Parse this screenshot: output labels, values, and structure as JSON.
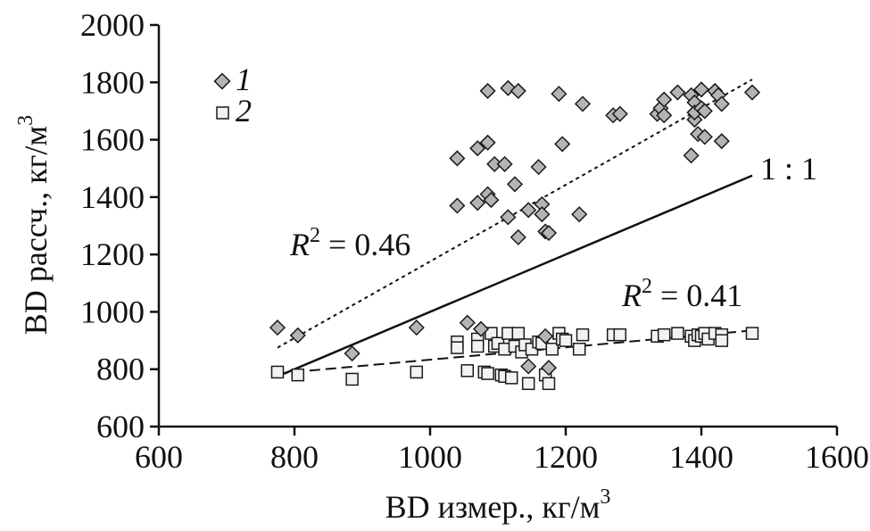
{
  "chart_data": {
    "type": "scatter",
    "title": "",
    "xlabel": {
      "text": "BD измер., кг/м",
      "sup": "3"
    },
    "ylabel": {
      "text": "BD рассч., кг/м",
      "sup": "3"
    },
    "xlim": [
      600,
      1600
    ],
    "ylim": [
      600,
      2000
    ],
    "xticks": [
      600,
      800,
      1000,
      1200,
      1400,
      1600
    ],
    "yticks": [
      600,
      800,
      1000,
      1200,
      1400,
      1600,
      1800,
      2000
    ],
    "grid": false,
    "legend_position": "top-left",
    "colors": {
      "series1_fill": "#b4b4b4",
      "series2_fill": "#f2f2f2",
      "stroke": "#1a1a1a"
    },
    "series": [
      {
        "name": "1",
        "marker": "diamond",
        "points": [
          [
            775,
            945
          ],
          [
            805,
            918
          ],
          [
            885,
            855
          ],
          [
            980,
            945
          ],
          [
            1055,
            962
          ],
          [
            1075,
            940
          ],
          [
            1145,
            810
          ],
          [
            1175,
            805
          ],
          [
            1170,
            915
          ],
          [
            1040,
            1535
          ],
          [
            1040,
            1370
          ],
          [
            1070,
            1570
          ],
          [
            1070,
            1380
          ],
          [
            1085,
            1770
          ],
          [
            1085,
            1590
          ],
          [
            1085,
            1410
          ],
          [
            1090,
            1390
          ],
          [
            1095,
            1515
          ],
          [
            1110,
            1515
          ],
          [
            1115,
            1780
          ],
          [
            1115,
            1330
          ],
          [
            1125,
            1445
          ],
          [
            1130,
            1770
          ],
          [
            1130,
            1260
          ],
          [
            1145,
            1355
          ],
          [
            1160,
            1505
          ],
          [
            1165,
            1375
          ],
          [
            1165,
            1340
          ],
          [
            1170,
            1280
          ],
          [
            1175,
            1275
          ],
          [
            1190,
            1760
          ],
          [
            1195,
            1585
          ],
          [
            1220,
            1340
          ],
          [
            1225,
            1725
          ],
          [
            1270,
            1685
          ],
          [
            1280,
            1690
          ],
          [
            1335,
            1690
          ],
          [
            1340,
            1710
          ],
          [
            1345,
            1740
          ],
          [
            1345,
            1685
          ],
          [
            1365,
            1765
          ],
          [
            1385,
            1755
          ],
          [
            1385,
            1545
          ],
          [
            1390,
            1730
          ],
          [
            1390,
            1670
          ],
          [
            1390,
            1695
          ],
          [
            1395,
            1620
          ],
          [
            1400,
            1710
          ],
          [
            1400,
            1775
          ],
          [
            1405,
            1610
          ],
          [
            1405,
            1700
          ],
          [
            1420,
            1770
          ],
          [
            1425,
            1755
          ],
          [
            1430,
            1725
          ],
          [
            1430,
            1595
          ],
          [
            1475,
            1765
          ]
        ]
      },
      {
        "name": "2",
        "marker": "square",
        "points": [
          [
            775,
            790
          ],
          [
            805,
            780
          ],
          [
            885,
            765
          ],
          [
            980,
            790
          ],
          [
            1040,
            895
          ],
          [
            1040,
            875
          ],
          [
            1055,
            795
          ],
          [
            1070,
            905
          ],
          [
            1070,
            880
          ],
          [
            1080,
            790
          ],
          [
            1085,
            785
          ],
          [
            1090,
            925
          ],
          [
            1095,
            880
          ],
          [
            1100,
            890
          ],
          [
            1105,
            780
          ],
          [
            1110,
            870
          ],
          [
            1110,
            775
          ],
          [
            1115,
            925
          ],
          [
            1120,
            770
          ],
          [
            1125,
            880
          ],
          [
            1130,
            925
          ],
          [
            1135,
            860
          ],
          [
            1140,
            885
          ],
          [
            1145,
            750
          ],
          [
            1150,
            870
          ],
          [
            1160,
            895
          ],
          [
            1165,
            890
          ],
          [
            1170,
            780
          ],
          [
            1175,
            750
          ],
          [
            1180,
            870
          ],
          [
            1190,
            925
          ],
          [
            1195,
            905
          ],
          [
            1200,
            900
          ],
          [
            1220,
            870
          ],
          [
            1225,
            920
          ],
          [
            1270,
            920
          ],
          [
            1280,
            920
          ],
          [
            1335,
            915
          ],
          [
            1345,
            920
          ],
          [
            1365,
            925
          ],
          [
            1385,
            915
          ],
          [
            1390,
            900
          ],
          [
            1395,
            920
          ],
          [
            1400,
            915
          ],
          [
            1405,
            925
          ],
          [
            1410,
            905
          ],
          [
            1420,
            925
          ],
          [
            1430,
            920
          ],
          [
            1430,
            900
          ],
          [
            1475,
            925
          ]
        ]
      }
    ],
    "lines": [
      {
        "label": "1 : 1",
        "style": "solid",
        "from": [
          775,
          775
        ],
        "to": [
          1475,
          1475
        ]
      },
      {
        "label": "R2 = 0.46",
        "style": "dotted",
        "from": [
          775,
          875
        ],
        "to": [
          1475,
          1810
        ]
      },
      {
        "label": "R2 = 0.41",
        "style": "dashed",
        "from": [
          775,
          785
        ],
        "to": [
          1475,
          935
        ]
      }
    ],
    "annotations": {
      "one_to_one": "1 : 1",
      "r2_series1": {
        "prefix": "R",
        "sup": "2",
        "text": " = 0.46"
      },
      "r2_series2": {
        "prefix": "R",
        "sup": "2",
        "text": " = 0.41"
      }
    },
    "legend": [
      {
        "label": "1",
        "marker": "diamond"
      },
      {
        "label": "2",
        "marker": "square"
      }
    ]
  }
}
